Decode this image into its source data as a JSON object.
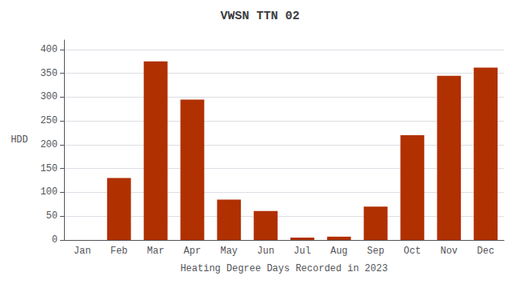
{
  "chart_data": {
    "type": "bar",
    "title": "VWSN TTN 02",
    "xlabel": "Heating Degree Days Recorded in 2023",
    "ylabel": "HDD",
    "categories": [
      "Jan",
      "Feb",
      "Mar",
      "Apr",
      "May",
      "Jun",
      "Jul",
      "Aug",
      "Sep",
      "Oct",
      "Nov",
      "Dec"
    ],
    "values": [
      0,
      130,
      375,
      295,
      85,
      61,
      5,
      7,
      70,
      220,
      345,
      362
    ],
    "color": "#b03000",
    "ylim": [
      0,
      420
    ],
    "yticks": [
      0,
      50,
      100,
      150,
      200,
      250,
      300,
      350,
      400
    ],
    "grid": true
  }
}
